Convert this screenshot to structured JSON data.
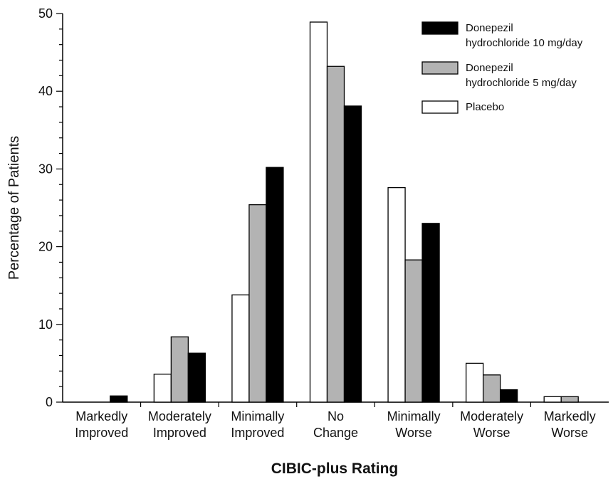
{
  "chart_data": {
    "type": "bar",
    "title": "",
    "xlabel": "CIBIC-plus Rating",
    "ylabel": "Percentage of Patients",
    "ylim": [
      0,
      50
    ],
    "yticks": [
      0,
      10,
      20,
      30,
      40,
      50
    ],
    "grid": false,
    "legend_position": "top-right",
    "categories": [
      [
        "Markedly",
        "Improved"
      ],
      [
        "Moderately",
        "Improved"
      ],
      [
        "Minimally",
        "Improved"
      ],
      [
        "No",
        "Change"
      ],
      [
        "Minimally",
        "Worse"
      ],
      [
        "Moderately",
        "Worse"
      ],
      [
        "Markedly",
        "Worse"
      ]
    ],
    "series": [
      {
        "name": "Placebo",
        "fill": "#ffffff",
        "values": [
          0,
          3.6,
          13.8,
          48.9,
          27.6,
          5.0,
          0.7
        ]
      },
      {
        "name": "Donepezil hydrochloride 5 mg/day",
        "fill": "#b3b3b3",
        "values": [
          0,
          8.4,
          25.4,
          43.2,
          18.3,
          3.5,
          0.7
        ]
      },
      {
        "name": "Donepezil hydrochloride 10 mg/day",
        "fill": "#000000",
        "values": [
          0.8,
          6.3,
          30.2,
          38.1,
          23.0,
          1.6,
          0
        ]
      }
    ],
    "legend": [
      {
        "series": 2,
        "lines": [
          "Donepezil",
          "hydrochloride 10 mg/day"
        ]
      },
      {
        "series": 1,
        "lines": [
          "Donepezil",
          "hydrochloride 5 mg/day"
        ]
      },
      {
        "series": 0,
        "lines": [
          "Placebo"
        ]
      }
    ]
  }
}
